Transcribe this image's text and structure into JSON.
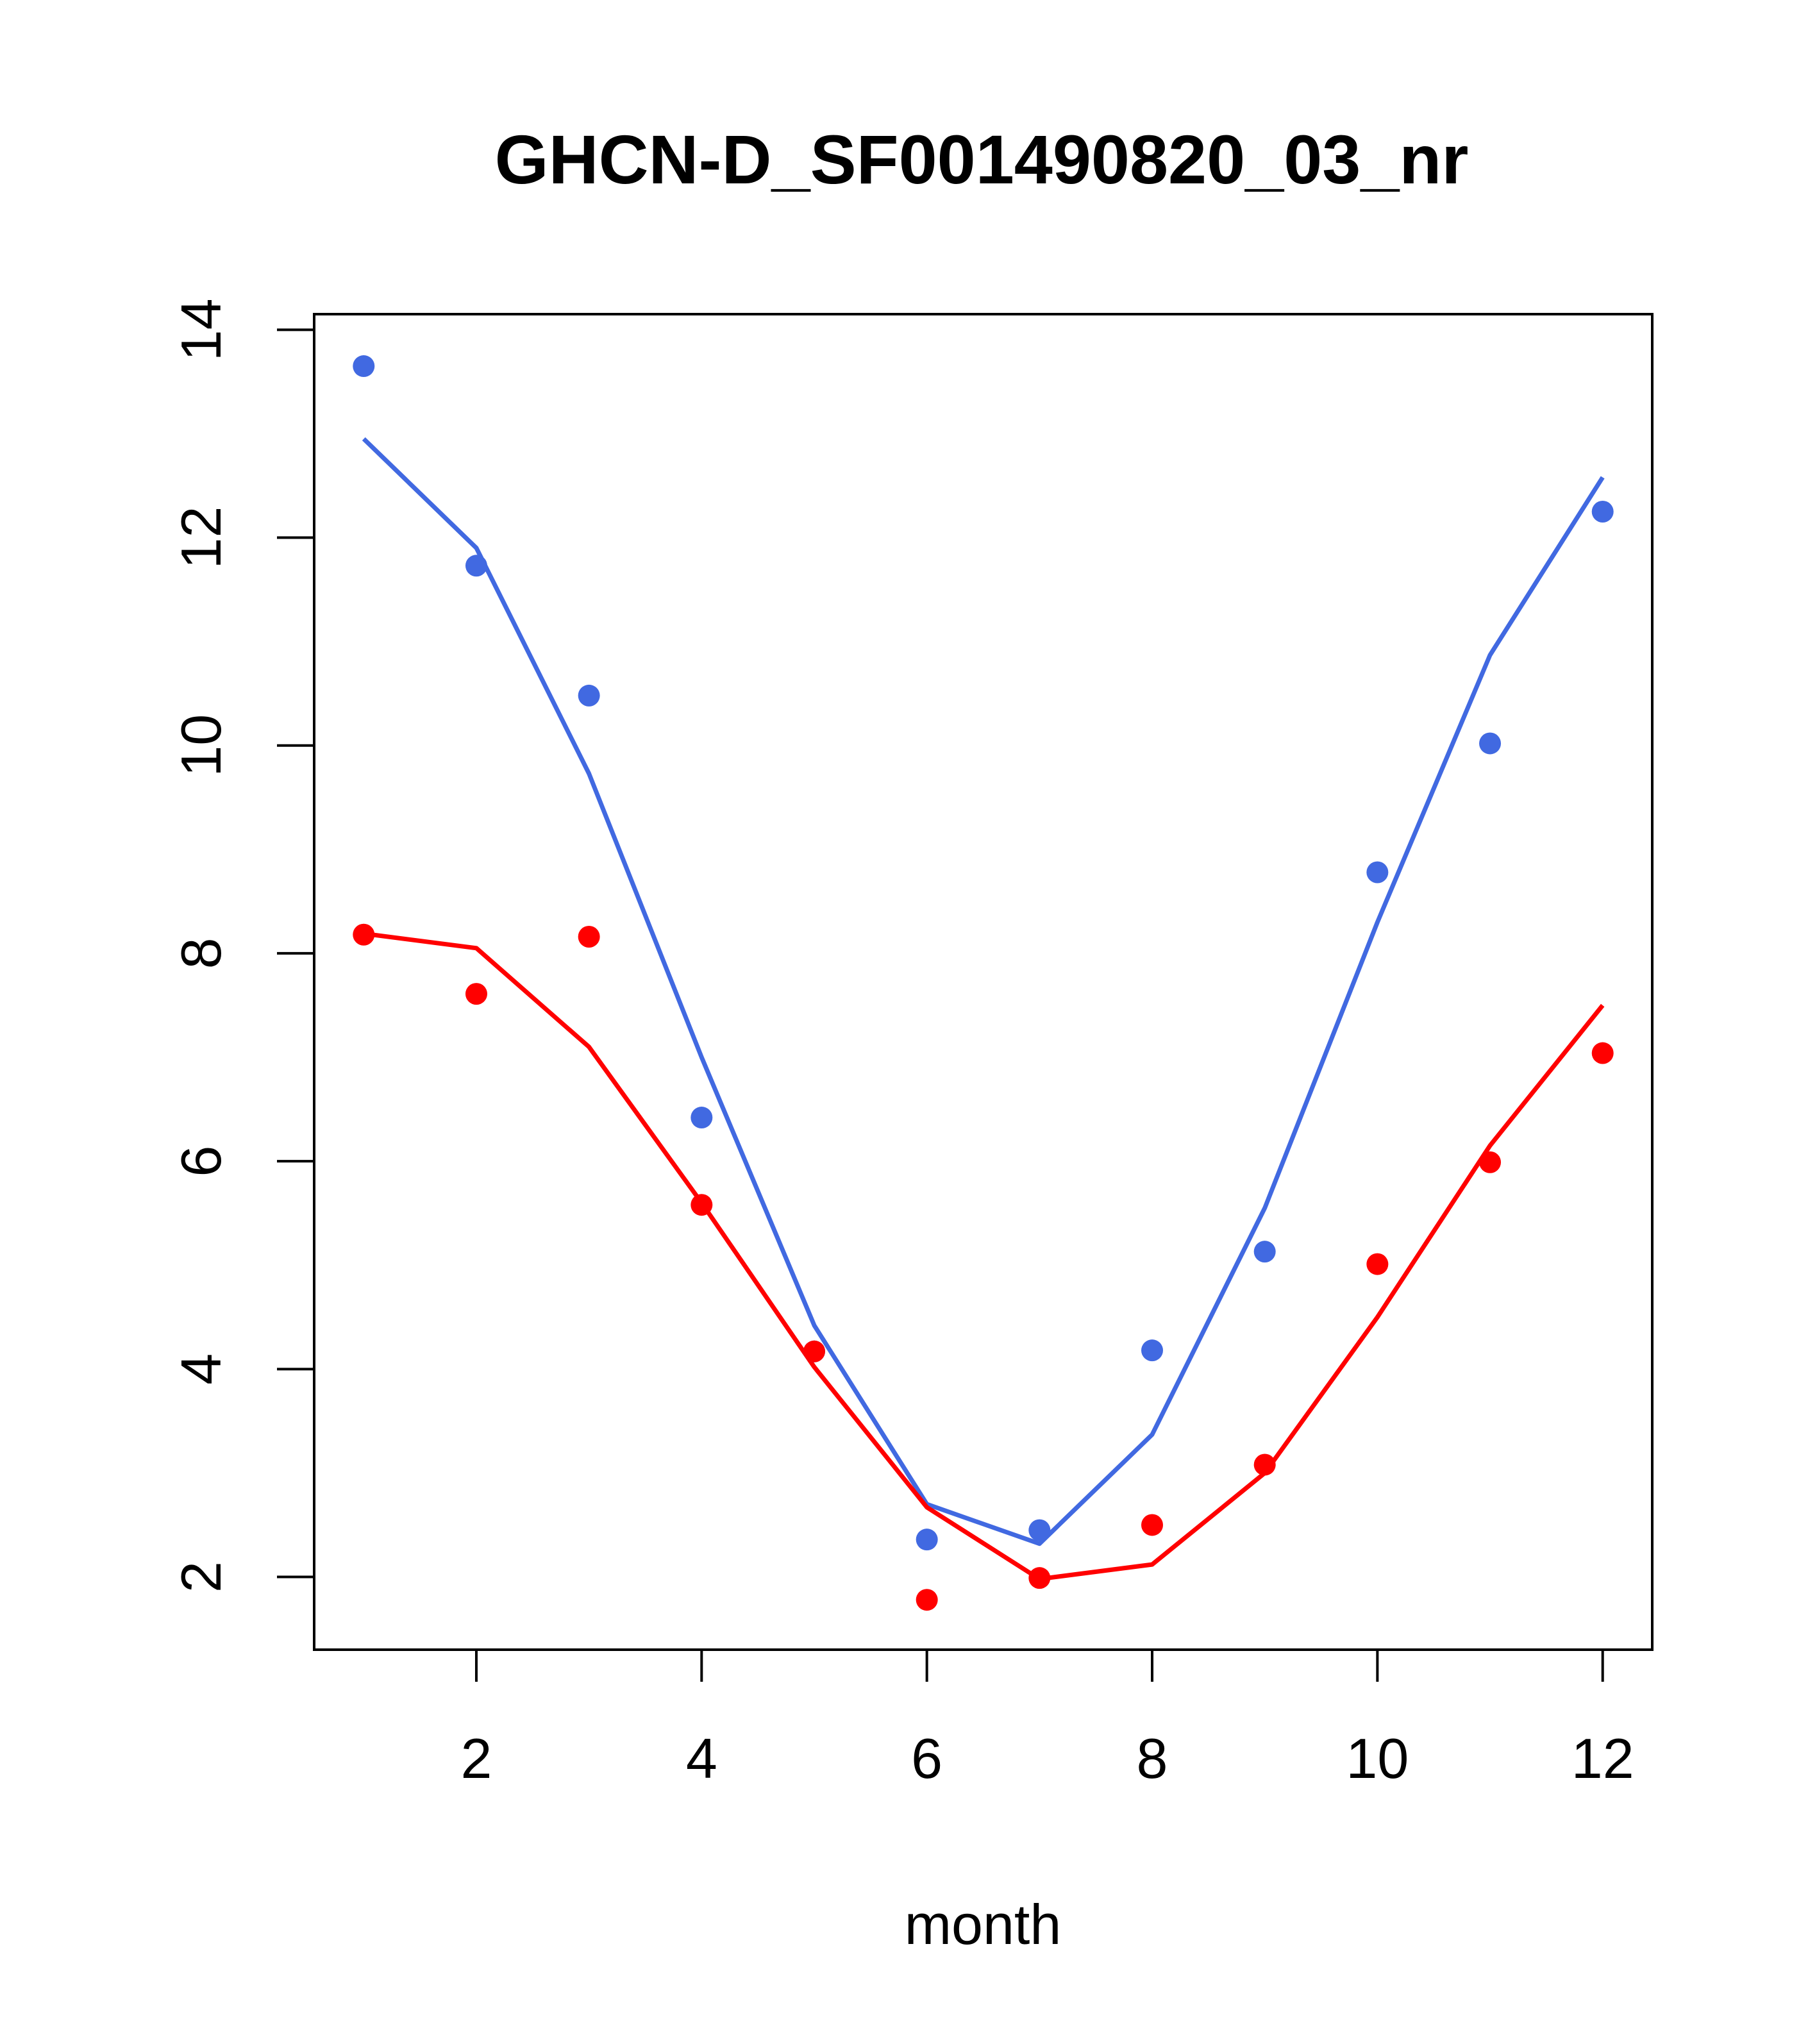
{
  "chart_data": {
    "type": "line",
    "title": "GHCN-D_SF001490820_03_nr",
    "xlabel": "month",
    "ylabel": "",
    "xlim": [
      0.56,
      12.44
    ],
    "ylim": [
      1.3,
      14.15
    ],
    "x_ticks": [
      2,
      4,
      6,
      8,
      10,
      12
    ],
    "y_ticks": [
      2,
      4,
      6,
      8,
      10,
      12,
      14
    ],
    "x_tick_labels": [
      "2",
      "4",
      "6",
      "8",
      "10",
      "12"
    ],
    "y_tick_labels": [
      "2",
      "4",
      "6",
      "8",
      "10",
      "12",
      "14"
    ],
    "grid": false,
    "legend": "none",
    "x": [
      1,
      2,
      3,
      4,
      5,
      6,
      7,
      8,
      9,
      10,
      11,
      12
    ],
    "series": [
      {
        "color": "#4169E1",
        "points": [
          13.65,
          11.73,
          10.48,
          6.42,
          4.17,
          2.36,
          2.45,
          4.18,
          5.13,
          8.78,
          10.02,
          12.25
        ],
        "line": [
          12.95,
          11.9,
          9.73,
          7.0,
          4.42,
          2.7,
          2.32,
          3.37,
          5.55,
          8.3,
          10.87,
          12.58
        ]
      },
      {
        "color": "#FF0000",
        "points": [
          8.18,
          7.61,
          8.16,
          5.58,
          4.17,
          1.78,
          1.99,
          2.5,
          3.08,
          5.01,
          5.99,
          7.04
        ],
        "line": [
          8.19,
          8.05,
          7.1,
          5.6,
          4.02,
          2.67,
          1.98,
          2.12,
          3.0,
          4.5,
          6.15,
          7.5
        ]
      }
    ]
  }
}
